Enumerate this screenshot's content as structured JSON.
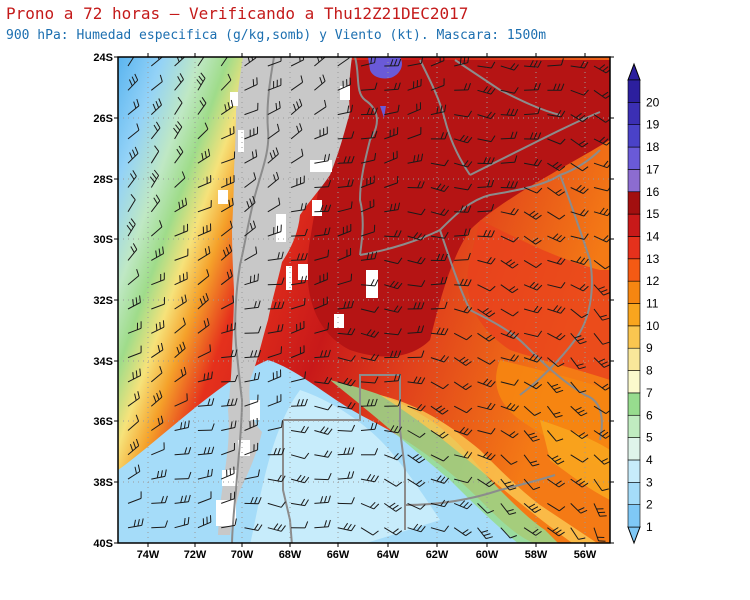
{
  "header": {
    "title": "Prono a 72 horas — Verificando a Thu12Z21DEC2017",
    "subtitle": "900 hPa: Humedad especifica (g/kg,somb) y Viento (kt). Mascara: 1500m"
  },
  "map": {
    "lat_labels": [
      "24S",
      "26S",
      "28S",
      "30S",
      "32S",
      "34S",
      "36S",
      "38S",
      "40S"
    ],
    "lon_labels": [
      "74W",
      "72W",
      "70W",
      "68W",
      "66W",
      "64W",
      "62W",
      "60W",
      "58W",
      "56W"
    ],
    "mask_color": "#c8c8c8",
    "border_color": "#8c8c8c"
  },
  "colorbar": {
    "labels": [
      "1",
      "2",
      "3",
      "4",
      "5",
      "6",
      "7",
      "8",
      "9",
      "10",
      "11",
      "12",
      "13",
      "14",
      "15",
      "16",
      "17",
      "18",
      "19",
      "20"
    ],
    "colors": [
      "#7fc8f6",
      "#a5dcf9",
      "#c7ecfb",
      "#dff4ea",
      "#c0ecc0",
      "#97dc8e",
      "#fbfacc",
      "#f9e79a",
      "#fac650",
      "#f9a51e",
      "#f68611",
      "#f45a14",
      "#e5311c",
      "#c81919",
      "#a20f0f",
      "#8c6cd0",
      "#6a5ad8",
      "#4a42c8",
      "#3b2fb4",
      "#2c1f9e"
    ]
  }
}
